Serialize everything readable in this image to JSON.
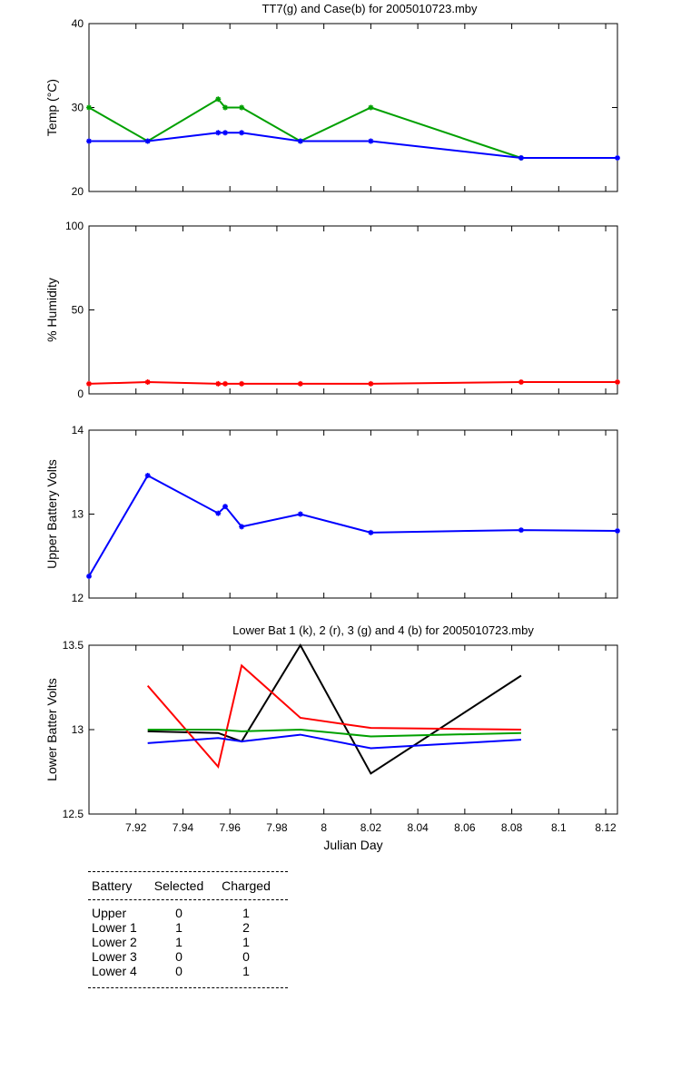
{
  "chart_data": [
    {
      "type": "line",
      "title": "TT7(g) and Case(b) for 2005010723.mby",
      "xlabel": "",
      "ylabel": "Temp  (°C)",
      "xlim": [
        7.9,
        8.125
      ],
      "ylim": [
        20,
        40
      ],
      "yticks": [
        20,
        30,
        40
      ],
      "series": [
        {
          "color": "#00a000",
          "x": [
            7.9,
            7.925,
            7.955,
            7.958,
            7.965,
            7.99,
            8.02,
            8.084
          ],
          "y": [
            30,
            26,
            31,
            30,
            30,
            26,
            30,
            24
          ],
          "marker": true
        },
        {
          "color": "#0000ff",
          "x": [
            7.9,
            7.925,
            7.955,
            7.958,
            7.965,
            7.99,
            8.02,
            8.084,
            8.125
          ],
          "y": [
            26,
            26,
            27,
            27,
            27,
            26,
            26,
            24,
            24
          ],
          "marker": true
        }
      ]
    },
    {
      "type": "line",
      "title": "",
      "xlabel": "",
      "ylabel": "% Humidity",
      "xlim": [
        7.9,
        8.125
      ],
      "ylim": [
        0,
        100
      ],
      "yticks": [
        0,
        50,
        100
      ],
      "series": [
        {
          "color": "#ff0000",
          "x": [
            7.9,
            7.925,
            7.955,
            7.958,
            7.965,
            7.99,
            8.02,
            8.084,
            8.125
          ],
          "y": [
            6,
            7,
            6,
            6,
            6,
            6,
            6,
            7,
            7
          ],
          "marker": true
        }
      ]
    },
    {
      "type": "line",
      "title": "",
      "xlabel": "",
      "ylabel": "Upper Battery Volts",
      "xlim": [
        7.9,
        8.125
      ],
      "ylim": [
        12,
        14
      ],
      "yticks": [
        12,
        13,
        14
      ],
      "series": [
        {
          "color": "#0000ff",
          "x": [
            7.9,
            7.925,
            7.955,
            7.958,
            7.965,
            7.99,
            8.02,
            8.084,
            8.125
          ],
          "y": [
            12.26,
            13.46,
            13.01,
            13.09,
            12.85,
            13.0,
            12.78,
            12.81,
            12.8
          ],
          "marker": true
        }
      ]
    },
    {
      "type": "line",
      "title": "Lower Bat 1 (k), 2 (r), 3 (g) and 4 (b) for 2005010723.mby",
      "xlabel": "Julian Day",
      "ylabel": "Lower Batter Volts",
      "xlim": [
        7.9,
        8.125
      ],
      "ylim": [
        12.5,
        13.5
      ],
      "yticks": [
        12.5,
        13,
        13.5
      ],
      "xticks": [
        7.92,
        7.94,
        7.96,
        7.98,
        8,
        8.02,
        8.04,
        8.06,
        8.08,
        8.1,
        8.12
      ],
      "xticklabels": [
        "7.92",
        "7.94",
        "7.96",
        "7.98",
        "8",
        "8.02",
        "8.04",
        "8.06",
        "8.08",
        "8.1",
        "8.12"
      ],
      "series": [
        {
          "color": "#000000",
          "x": [
            7.925,
            7.955,
            7.965,
            7.99,
            8.02,
            8.084
          ],
          "y": [
            12.99,
            12.98,
            12.93,
            13.5,
            12.74,
            13.32
          ],
          "marker": false
        },
        {
          "color": "#ff0000",
          "x": [
            7.925,
            7.955,
            7.965,
            7.99,
            8.02,
            8.084
          ],
          "y": [
            13.26,
            12.78,
            13.38,
            13.07,
            13.01,
            13.0
          ],
          "marker": false
        },
        {
          "color": "#00a000",
          "x": [
            7.925,
            7.955,
            7.965,
            7.99,
            8.02,
            8.084
          ],
          "y": [
            13.0,
            13.0,
            12.99,
            13.0,
            12.96,
            12.98
          ],
          "marker": false
        },
        {
          "color": "#0000ff",
          "x": [
            7.925,
            7.955,
            7.965,
            7.99,
            8.02,
            8.084
          ],
          "y": [
            12.92,
            12.95,
            12.93,
            12.97,
            12.89,
            12.94
          ],
          "marker": false
        }
      ]
    }
  ],
  "battery_table": {
    "headers": [
      "Battery",
      "Selected",
      "Charged"
    ],
    "rows": [
      [
        "Upper",
        "0",
        "1"
      ],
      [
        "Lower 1",
        "1",
        "2"
      ],
      [
        "Lower 2",
        "1",
        "1"
      ],
      [
        "Lower 3",
        "0",
        "0"
      ],
      [
        "Lower 4",
        "0",
        "1"
      ]
    ]
  }
}
